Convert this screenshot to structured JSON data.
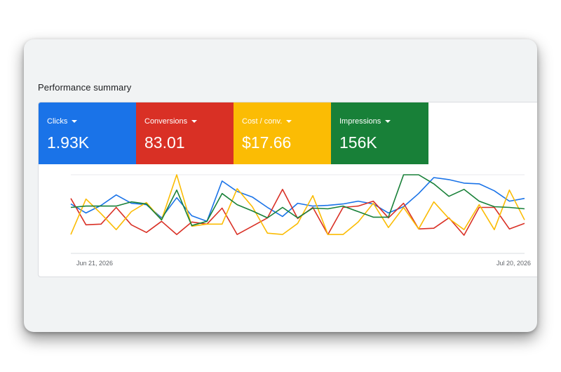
{
  "section_title": "Performance summary",
  "metrics": [
    {
      "label": "Clicks",
      "value": "1.93K",
      "color": "#1a73e8",
      "dropdown_icon": "caret-down-icon"
    },
    {
      "label": "Conversions",
      "value": "83.01",
      "color": "#d93025",
      "dropdown_icon": "caret-down-icon"
    },
    {
      "label": "Cost / conv.",
      "value": "$17.66",
      "color": "#fbbc04",
      "dropdown_icon": "caret-down-icon"
    },
    {
      "label": "Impressions",
      "value": "156K",
      "color": "#188038",
      "dropdown_icon": "caret-down-icon"
    }
  ],
  "chart_data": {
    "type": "line",
    "x_tick_labels": [
      "Jun 21, 2026",
      "Jul 20, 2026"
    ],
    "grid": "horizontal",
    "series": [
      {
        "metric": "Clicks",
        "color": "#1a73e8",
        "values": [
          0.58,
          0.45,
          0.56,
          0.71,
          0.59,
          0.57,
          0.38,
          0.67,
          0.41,
          0.33,
          0.91,
          0.76,
          0.68,
          0.53,
          0.4,
          0.59,
          0.55,
          0.56,
          0.58,
          0.62,
          0.58,
          0.45,
          0.54,
          0.73,
          0.96,
          0.93,
          0.88,
          0.87,
          0.77,
          0.62,
          0.66
        ]
      },
      {
        "metric": "Conversions",
        "color": "#d93025",
        "values": [
          0.66,
          0.28,
          0.29,
          0.53,
          0.28,
          0.17,
          0.33,
          0.14,
          0.32,
          0.29,
          0.52,
          0.14,
          0.26,
          0.38,
          0.79,
          0.37,
          0.53,
          0.14,
          0.53,
          0.55,
          0.62,
          0.38,
          0.59,
          0.22,
          0.23,
          0.38,
          0.13,
          0.53,
          0.53,
          0.22,
          0.3
        ]
      },
      {
        "metric": "Cost / conv.",
        "color": "#fbbc04",
        "values": [
          0.14,
          0.65,
          0.44,
          0.21,
          0.47,
          0.6,
          0.35,
          1.0,
          0.26,
          0.29,
          0.29,
          0.8,
          0.54,
          0.16,
          0.14,
          0.3,
          0.7,
          0.14,
          0.14,
          0.32,
          0.59,
          0.24,
          0.53,
          0.22,
          0.61,
          0.37,
          0.21,
          0.57,
          0.21,
          0.78,
          0.35
        ]
      },
      {
        "metric": "Impressions",
        "color": "#188038",
        "values": [
          0.53,
          0.55,
          0.55,
          0.55,
          0.61,
          0.58,
          0.35,
          0.78,
          0.27,
          0.33,
          0.73,
          0.57,
          0.48,
          0.38,
          0.53,
          0.38,
          0.52,
          0.51,
          0.55,
          0.47,
          0.39,
          0.39,
          1.0,
          1.0,
          0.87,
          0.69,
          0.79,
          0.62,
          0.54,
          0.53,
          0.51
        ]
      }
    ]
  }
}
